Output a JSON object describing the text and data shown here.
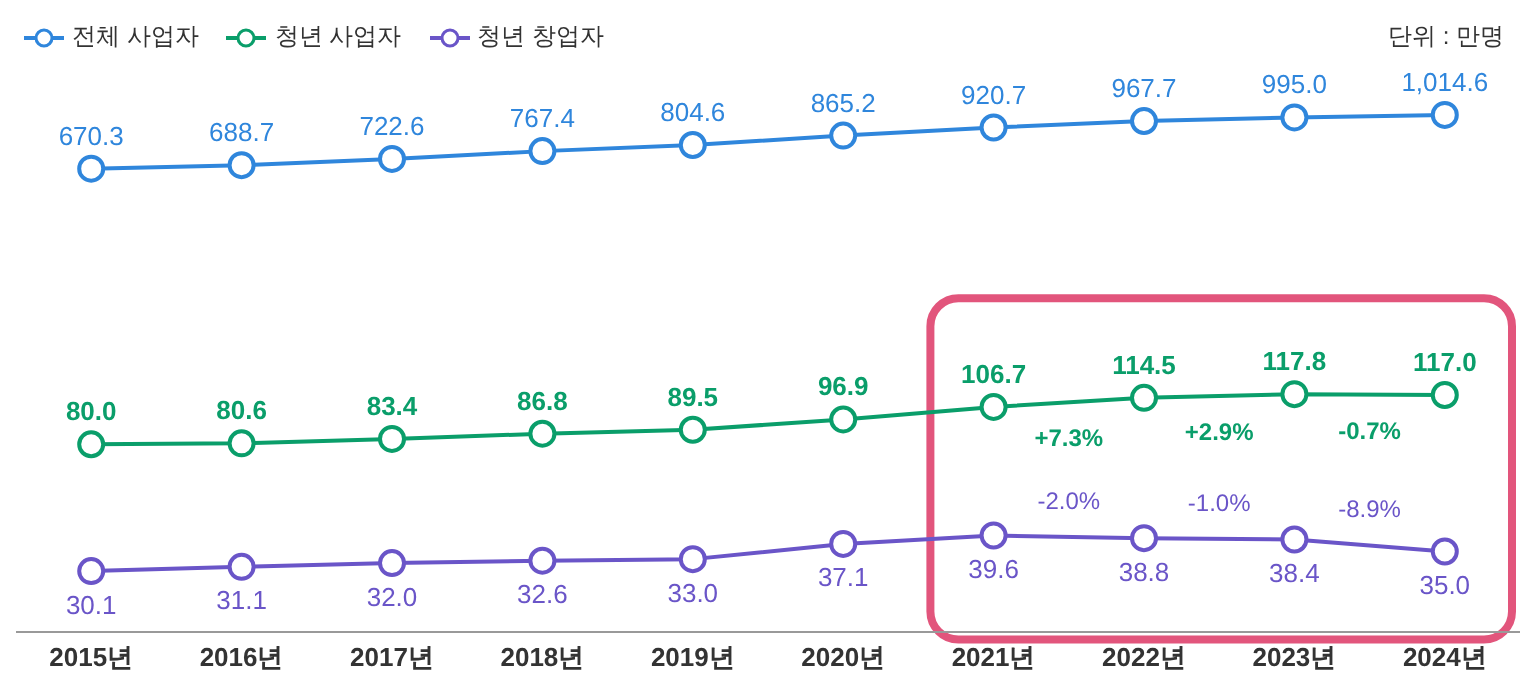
{
  "chart_data": {
    "type": "line",
    "categories": [
      "2015년",
      "2016년",
      "2017년",
      "2018년",
      "2019년",
      "2020년",
      "2021년",
      "2022년",
      "2023년",
      "2024년"
    ],
    "series": [
      {
        "name": "전체 사업자",
        "color": "#2f86dc",
        "values": [
          670.3,
          688.7,
          722.6,
          767.4,
          804.6,
          865.2,
          920.7,
          967.7,
          995.0,
          1014.6
        ],
        "value_labels": [
          "670.3",
          "688.7",
          "722.6",
          "767.4",
          "804.6",
          "865.2",
          "920.7",
          "967.7",
          "995.0",
          "1,014.6"
        ]
      },
      {
        "name": "청년 사업자",
        "color": "#0a9e6a",
        "values": [
          80.0,
          80.6,
          83.4,
          86.8,
          89.5,
          96.9,
          106.7,
          114.5,
          117.8,
          117.0
        ],
        "value_labels": [
          "80.0",
          "80.6",
          "83.4",
          "86.8",
          "89.5",
          "96.9",
          "106.7",
          "114.5",
          "117.8",
          "117.0"
        ]
      },
      {
        "name": "청년 창업자",
        "color": "#6a55c8",
        "values": [
          30.1,
          31.1,
          32.0,
          32.6,
          33.0,
          37.1,
          39.6,
          38.8,
          38.4,
          35.0
        ],
        "value_labels": [
          "30.1",
          "31.1",
          "32.0",
          "32.6",
          "33.0",
          "37.1",
          "39.6",
          "38.8",
          "38.4",
          "35.0"
        ]
      }
    ],
    "log": true,
    "marker": "circle",
    "legend": "top left",
    "annotations": [
      "단위 : 만명",
      "+7.3%",
      "+2.9%",
      "-0.7%",
      "-2.0%",
      "-1.0%",
      "-8.9%"
    ]
  }
}
